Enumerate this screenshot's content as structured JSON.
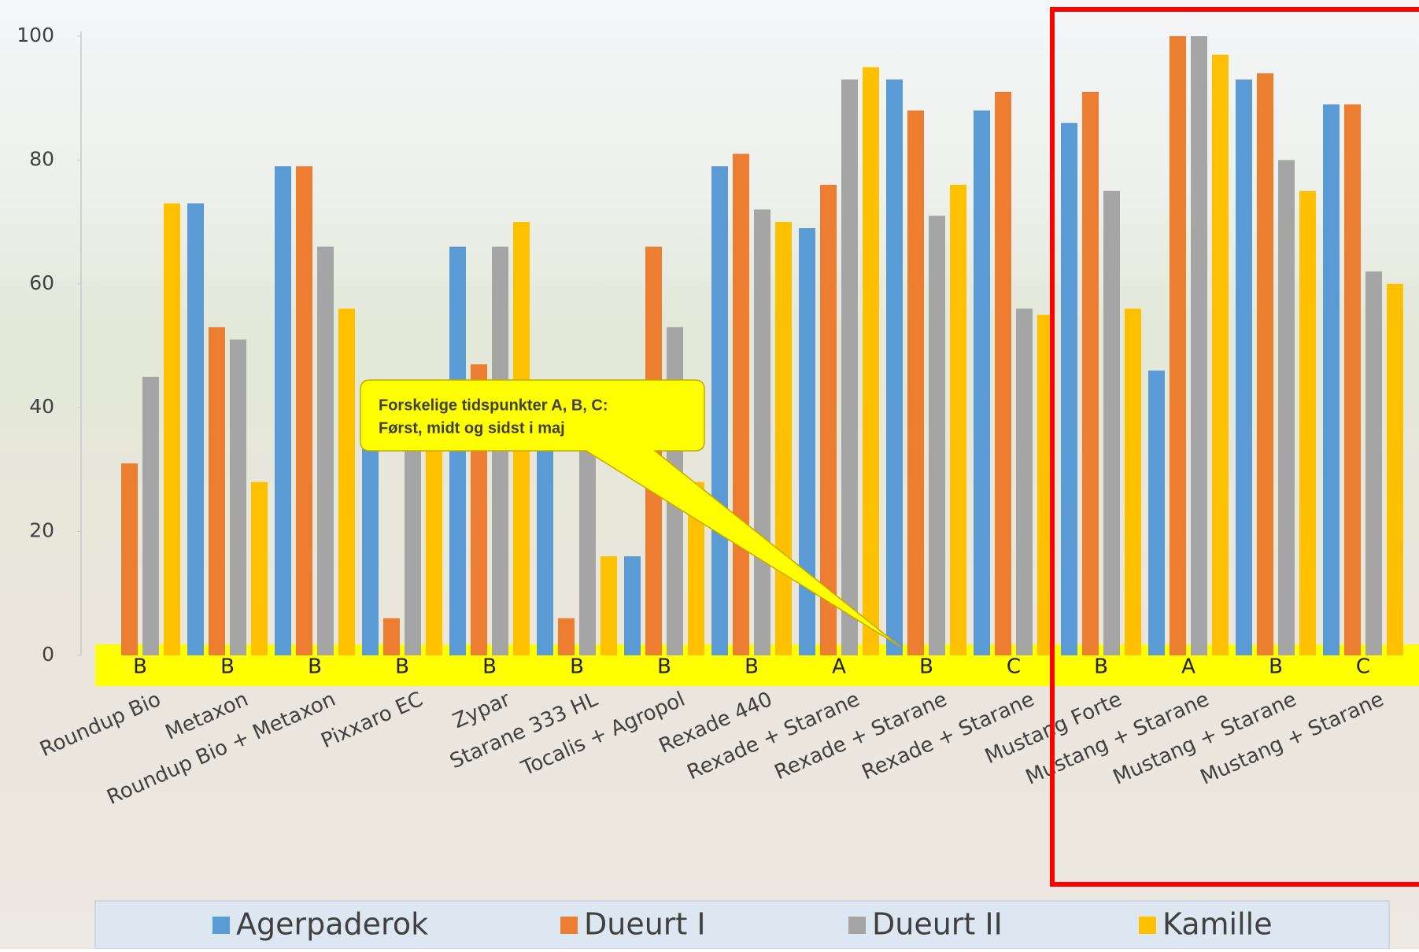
{
  "chart_data": {
    "type": "bar",
    "categories": [
      "Roundup Bio",
      "Metaxon",
      "Roundup Bio + Metaxon",
      "Pixxaro EC",
      "Zypar",
      "Starane 333 HL",
      "Tocalis + Agropol",
      "Rexade 440",
      "Rexade + Starane",
      "Rexade + Starane",
      "Rexade + Starane",
      "Mustang Forte",
      "Mustang + Starane",
      "Mustang + Starane",
      "Mustang + Starane"
    ],
    "timings": [
      "B",
      "B",
      "B",
      "B",
      "B",
      "B",
      "B",
      "B",
      "A",
      "B",
      "C",
      "B",
      "A",
      "B",
      "C"
    ],
    "series": [
      {
        "name": "Agerpaderok",
        "color": "#5b9bd5",
        "values": [
          0,
          73,
          79,
          40,
          66,
          38,
          16,
          79,
          69,
          93,
          88,
          86,
          46,
          93,
          89
        ]
      },
      {
        "name": "Dueurt I",
        "color": "#ed7d31",
        "values": [
          31,
          53,
          79,
          6,
          47,
          6,
          66,
          81,
          76,
          88,
          91,
          91,
          100,
          94,
          89
        ]
      },
      {
        "name": "Dueurt II",
        "color": "#a5a5a5",
        "values": [
          45,
          51,
          66,
          38,
          66,
          33,
          53,
          72,
          93,
          71,
          56,
          75,
          100,
          80,
          62
        ]
      },
      {
        "name": "Kamille",
        "color": "#ffc000",
        "values": [
          73,
          28,
          56,
          36,
          70,
          16,
          28,
          70,
          95,
          76,
          55,
          56,
          97,
          75,
          60
        ]
      }
    ],
    "ylim": [
      0,
      100
    ],
    "yticks": [
      0,
      20,
      40,
      60,
      80,
      100
    ],
    "callout": [
      "Forskelige tidspunkter A, B, C:",
      "Først, midt og sidst i maj"
    ],
    "legend": "bottom"
  }
}
